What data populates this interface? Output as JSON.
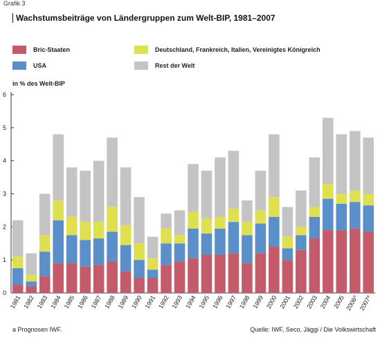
{
  "grafik_label": "Grafik 3",
  "colors": {
    "bric": "#c45b6b",
    "usa": "#5b8fc9",
    "eu4": "#dfe04f",
    "rest": "#c4c4c4"
  },
  "legend": {
    "bric": "Bric-Staaten",
    "usa": "USA",
    "eu4": "Deutschland, Frankreich, Italien, Vereinigtes Königreich",
    "rest": "Rest der Welt"
  },
  "footnote": "a   Prognosen IWF.",
  "source": "Quelle: IWF, Seco, Jäggi / Die Volkswirtschaft",
  "chart_data": {
    "type": "bar",
    "stacked": true,
    "title": "Wachstumsbeiträge von Ländergruppen zum Welt-BIP, 1981–2007",
    "ylabel": "in % des Welt-BIP",
    "xlabel": "",
    "ylim": [
      0,
      6
    ],
    "yticks": [
      0,
      1,
      2,
      3,
      4,
      5,
      6
    ],
    "grid": false,
    "categories": [
      "1981",
      "1982",
      "1983",
      "1984",
      "1985",
      "1986",
      "1987",
      "1988",
      "1989",
      "1990",
      "1991",
      "1992",
      "1993",
      "1994",
      "1995",
      "1996",
      "1997",
      "1998",
      "1999",
      "2000",
      "2001",
      "2002",
      "2003",
      "2004",
      "2005",
      "2006a",
      "2007a"
    ],
    "series": [
      {
        "name": "Bric-Staaten",
        "values": [
          0.25,
          0.2,
          0.5,
          0.9,
          0.9,
          0.8,
          0.85,
          0.95,
          0.65,
          0.45,
          0.45,
          0.85,
          0.95,
          1.05,
          1.15,
          1.15,
          1.2,
          0.9,
          1.2,
          1.4,
          1.0,
          1.3,
          1.65,
          1.9,
          1.9,
          1.95,
          1.85
        ]
      },
      {
        "name": "USA",
        "values": [
          0.5,
          0.15,
          0.75,
          1.3,
          0.85,
          0.8,
          0.8,
          0.9,
          0.8,
          0.55,
          0.25,
          0.65,
          0.55,
          0.9,
          0.65,
          0.8,
          0.95,
          0.85,
          0.9,
          0.9,
          0.35,
          0.45,
          0.65,
          0.95,
          0.8,
          0.8,
          0.8
        ]
      },
      {
        "name": "Deutschland, Frankreich, Italien, Vereinigtes Königreich",
        "values": [
          0.35,
          0.2,
          0.5,
          0.6,
          0.55,
          0.55,
          0.5,
          0.75,
          0.6,
          0.5,
          0.35,
          0.45,
          0.25,
          0.5,
          0.45,
          0.35,
          0.4,
          0.4,
          0.4,
          0.6,
          0.35,
          0.25,
          0.3,
          0.45,
          0.3,
          0.35,
          0.35
        ]
      },
      {
        "name": "Rest der Welt",
        "values": [
          1.1,
          0.65,
          1.25,
          2.0,
          1.5,
          1.55,
          1.85,
          2.1,
          1.75,
          1.4,
          0.65,
          0.45,
          0.75,
          1.45,
          1.45,
          1.8,
          1.75,
          0.65,
          1.2,
          1.9,
          0.9,
          1.1,
          1.5,
          2.0,
          1.8,
          1.8,
          1.7
        ]
      }
    ]
  }
}
